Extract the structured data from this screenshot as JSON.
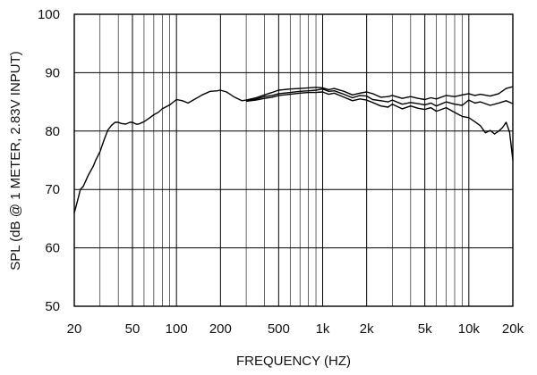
{
  "chart_data": {
    "type": "line",
    "xlabel": "FREQUENCY  (HZ)",
    "ylabel": "SPL (dB @ 1 METER, 2.83V INPUT)",
    "xscale": "log",
    "xlim": [
      20,
      20000
    ],
    "ylim": [
      50,
      100
    ],
    "grid": true,
    "line_color": "#000000",
    "x_ticks": [
      {
        "value": 20,
        "label": "20"
      },
      {
        "value": 50,
        "label": "50"
      },
      {
        "value": 100,
        "label": "100"
      },
      {
        "value": 200,
        "label": "200"
      },
      {
        "value": 500,
        "label": "500"
      },
      {
        "value": 1000,
        "label": "1k"
      },
      {
        "value": 2000,
        "label": "2k"
      },
      {
        "value": 5000,
        "label": "5k"
      },
      {
        "value": 10000,
        "label": "10k"
      },
      {
        "value": 20000,
        "label": "20k"
      }
    ],
    "y_ticks": [
      {
        "value": 50,
        "label": "50"
      },
      {
        "value": 60,
        "label": "60"
      },
      {
        "value": 70,
        "label": "70"
      },
      {
        "value": 80,
        "label": "80"
      },
      {
        "value": 90,
        "label": "90"
      },
      {
        "value": 100,
        "label": "100"
      }
    ],
    "series": [
      {
        "x": [
          20,
          21,
          22,
          23,
          25,
          27,
          28,
          30,
          32,
          34,
          36,
          38,
          40,
          42,
          45,
          48,
          50,
          53,
          55,
          60,
          65,
          70,
          75,
          80,
          90,
          100,
          110,
          120,
          130,
          150,
          170,
          190,
          200,
          220,
          250,
          280,
          300,
          350,
          400,
          450,
          500,
          600,
          700,
          800,
          900,
          1000,
          1100,
          1200,
          1400,
          1600,
          1800,
          2000,
          2200,
          2500,
          2800,
          3000,
          3500,
          4000,
          4500,
          5000,
          5500,
          6000,
          7000,
          8000,
          9000,
          10000,
          11000,
          12000,
          14000,
          16000,
          18000,
          20000
        ],
        "y": [
          66,
          68,
          70,
          70.5,
          72.5,
          74,
          75,
          76.5,
          78.5,
          80.2,
          81,
          81.5,
          81.5,
          81.3,
          81.2,
          81.5,
          81.5,
          81.2,
          81.2,
          81.6,
          82.2,
          82.8,
          83.2,
          83.8,
          84.5,
          85.4,
          85.2,
          84.8,
          85.3,
          86.2,
          86.8,
          86.9,
          87,
          86.7,
          85.8,
          85.2,
          85.3,
          85.7,
          86.2,
          86.6,
          87,
          87.2,
          87.3,
          87.4,
          87.5,
          87.4,
          87.1,
          87.3,
          86.8,
          86.2,
          86.5,
          86.7,
          86.4,
          85.8,
          85.9,
          86.1,
          85.6,
          85.9,
          85.6,
          85.4,
          85.7,
          85.5,
          86.1,
          85.9,
          86.2,
          86.4,
          86.1,
          86.3,
          86,
          86.4,
          87.3,
          87.6
        ]
      },
      {
        "x": [
          300,
          350,
          400,
          450,
          500,
          600,
          700,
          800,
          900,
          1000,
          1100,
          1200,
          1400,
          1600,
          1800,
          2000,
          2200,
          2500,
          2800,
          3000,
          3500,
          4000,
          4500,
          5000,
          5500,
          6000,
          7000,
          8000,
          9000,
          10000,
          11000,
          12000,
          14000,
          16000,
          18000,
          20000
        ],
        "y": [
          85.2,
          85.5,
          85.9,
          86.1,
          86.4,
          86.6,
          86.8,
          86.9,
          87,
          87.2,
          86.8,
          86.9,
          86.3,
          85.7,
          86.1,
          86,
          85.4,
          85.2,
          85,
          85.3,
          84.6,
          84.9,
          84.7,
          84.5,
          84.8,
          84.3,
          85,
          84.6,
          84.4,
          85.3,
          84.8,
          85,
          84.4,
          84.8,
          85.2,
          84.7
        ]
      },
      {
        "x": [
          300,
          350,
          400,
          450,
          500,
          600,
          700,
          800,
          900,
          1000,
          1100,
          1200,
          1400,
          1600,
          1800,
          2000,
          2200,
          2500,
          2800,
          3000,
          3500,
          4000,
          4500,
          5000,
          5500,
          6000,
          7000,
          8000,
          9000,
          10000,
          11000,
          12000,
          13000,
          14000,
          15000,
          16000,
          17000,
          18000,
          19000,
          20000
        ],
        "y": [
          85.1,
          85.3,
          85.6,
          85.8,
          86.1,
          86.3,
          86.5,
          86.6,
          86.6,
          86.7,
          86.3,
          86.5,
          85.8,
          85.2,
          85.5,
          85.3,
          84.9,
          84.3,
          84.1,
          84.6,
          83.8,
          84.3,
          83.9,
          83.7,
          84,
          83.4,
          84,
          83.2,
          82.5,
          82.3,
          81.6,
          80.9,
          79.7,
          80.1,
          79.5,
          80,
          80.6,
          81.5,
          79.8,
          75
        ]
      }
    ]
  }
}
